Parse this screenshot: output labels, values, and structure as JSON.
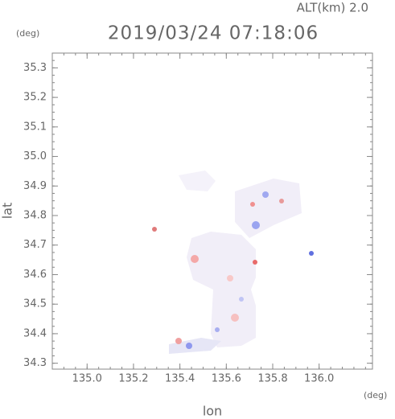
{
  "chart_data": {
    "type": "scatter",
    "title": "2019/03/24 07:18:06",
    "subtitle": "ALT(km) 2.0",
    "x_label": "lon",
    "y_label": "lat",
    "x_unit": "(deg)",
    "y_unit": "(deg)",
    "xlim": [
      134.85,
      136.23
    ],
    "ylim": [
      34.28,
      35.35
    ],
    "xticks": [
      {
        "value": 135,
        "label": "135.0"
      },
      135.2,
      135.4,
      135.6,
      135.8,
      {
        "value": 136,
        "label": "136.0"
      }
    ],
    "yticks": [
      34.3,
      34.4,
      34.5,
      34.6,
      34.7,
      34.8,
      34.9,
      {
        "value": 35,
        "label": "35.0"
      },
      35.1,
      35.2,
      35.3
    ]
  }
}
